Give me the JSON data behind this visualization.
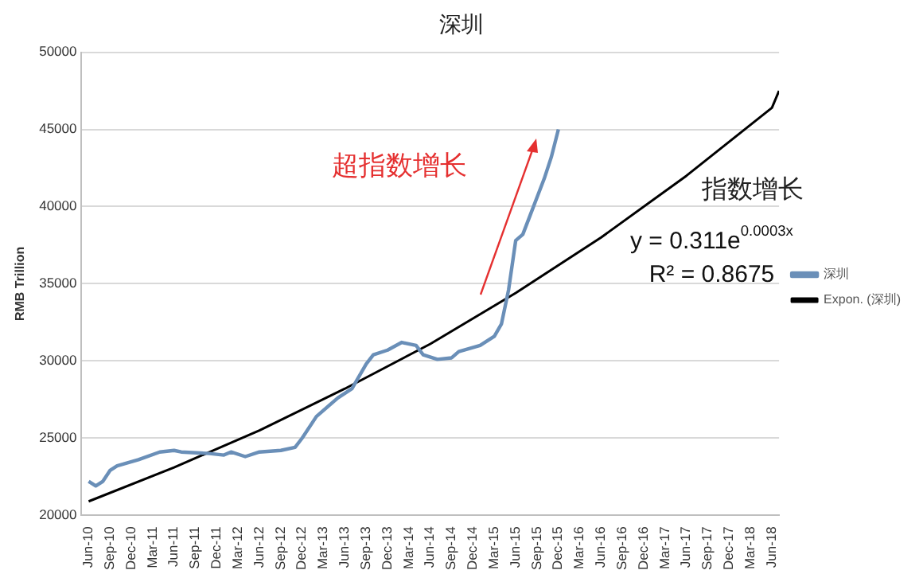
{
  "chart_data": {
    "type": "line",
    "title": "深圳",
    "ylabel": "RMB Trillion",
    "xlim": [
      "2010-05",
      "2018-07"
    ],
    "xticks": [
      {
        "value": "2010-06",
        "label": "Jun-10"
      },
      {
        "value": "2010-09",
        "label": "Sep-10"
      },
      {
        "value": "2010-12",
        "label": "Dec-10"
      },
      {
        "value": "2011-03",
        "label": "Mar-11"
      },
      {
        "value": "2011-06",
        "label": "Jun-11"
      },
      {
        "value": "2011-09",
        "label": "Sep-11"
      },
      {
        "value": "2011-12",
        "label": "Dec-11"
      },
      {
        "value": "2012-03",
        "label": "Mar-12"
      },
      {
        "value": "2012-06",
        "label": "Jun-12"
      },
      {
        "value": "2012-09",
        "label": "Sep-12"
      },
      {
        "value": "2012-12",
        "label": "Dec-12"
      },
      {
        "value": "2013-03",
        "label": "Mar-13"
      },
      {
        "value": "2013-06",
        "label": "Jun-13"
      },
      {
        "value": "2013-09",
        "label": "Sep-13"
      },
      {
        "value": "2013-12",
        "label": "Dec-13"
      },
      {
        "value": "2014-03",
        "label": "Mar-14"
      },
      {
        "value": "2014-06",
        "label": "Jun-14"
      },
      {
        "value": "2014-09",
        "label": "Sep-14"
      },
      {
        "value": "2014-12",
        "label": "Dec-14"
      },
      {
        "value": "2015-03",
        "label": "Mar-15"
      },
      {
        "value": "2015-06",
        "label": "Jun-15"
      },
      {
        "value": "2015-09",
        "label": "Sep-15"
      },
      {
        "value": "2015-12",
        "label": "Dec-15"
      },
      {
        "value": "2016-03",
        "label": "Mar-16"
      },
      {
        "value": "2016-06",
        "label": "Jun-16"
      },
      {
        "value": "2016-09",
        "label": "Sep-16"
      },
      {
        "value": "2016-12",
        "label": "Dec-16"
      },
      {
        "value": "2017-03",
        "label": "Mar-17"
      },
      {
        "value": "2017-06",
        "label": "Jun-17"
      },
      {
        "value": "2017-09",
        "label": "Sep-17"
      },
      {
        "value": "2017-12",
        "label": "Dec-17"
      },
      {
        "value": "2018-03",
        "label": "Mar-18"
      },
      {
        "value": "2018-06",
        "label": "Jun-18"
      }
    ],
    "ylim": [
      20000,
      50000
    ],
    "yticks": [
      20000,
      25000,
      30000,
      35000,
      40000,
      45000,
      50000
    ],
    "grid": "y",
    "legend": "right",
    "marker": "none",
    "line_style": "solid",
    "series": [
      {
        "name": "深圳",
        "color": "#6a8fb8",
        "x": [
          "2010-06",
          "2010-07",
          "2010-08",
          "2010-09",
          "2010-10",
          "2011-01",
          "2011-04",
          "2011-06",
          "2011-07",
          "2011-11",
          "2012-01",
          "2012-02",
          "2012-04",
          "2012-06",
          "2012-09",
          "2012-11",
          "2012-12",
          "2013-02",
          "2013-05",
          "2013-07",
          "2013-09",
          "2013-10",
          "2013-12",
          "2014-02",
          "2014-04",
          "2014-05",
          "2014-07",
          "2014-09",
          "2014-10",
          "2015-01",
          "2015-03",
          "2015-04",
          "2015-05",
          "2015-06",
          "2015-07",
          "2015-08",
          "2015-10",
          "2015-11",
          "2015-12"
        ],
        "values": [
          22200,
          21900,
          22200,
          22900,
          23200,
          23600,
          24100,
          24200,
          24100,
          24000,
          23900,
          24100,
          23800,
          24100,
          24200,
          24400,
          25000,
          26400,
          27600,
          28200,
          29800,
          30400,
          30700,
          31200,
          31000,
          30400,
          30100,
          30200,
          30600,
          31000,
          31600,
          32400,
          34600,
          37800,
          38200,
          39400,
          41800,
          43200,
          45000
        ]
      },
      {
        "name": "Expon. (深圳)",
        "color": "#000000",
        "x": [
          "2010-06",
          "2011-06",
          "2012-06",
          "2013-06",
          "2014-06",
          "2015-06",
          "2016-06",
          "2017-06",
          "2018-06",
          "2018-07"
        ],
        "values": [
          20900,
          23100,
          25500,
          28200,
          31100,
          34400,
          38000,
          42000,
          46400,
          47500
        ]
      }
    ],
    "annotations": [
      "超指数增长",
      "指数增长",
      "y = 0.311e$^{0.0003x}$",
      "R² = 0.8675"
    ]
  }
}
